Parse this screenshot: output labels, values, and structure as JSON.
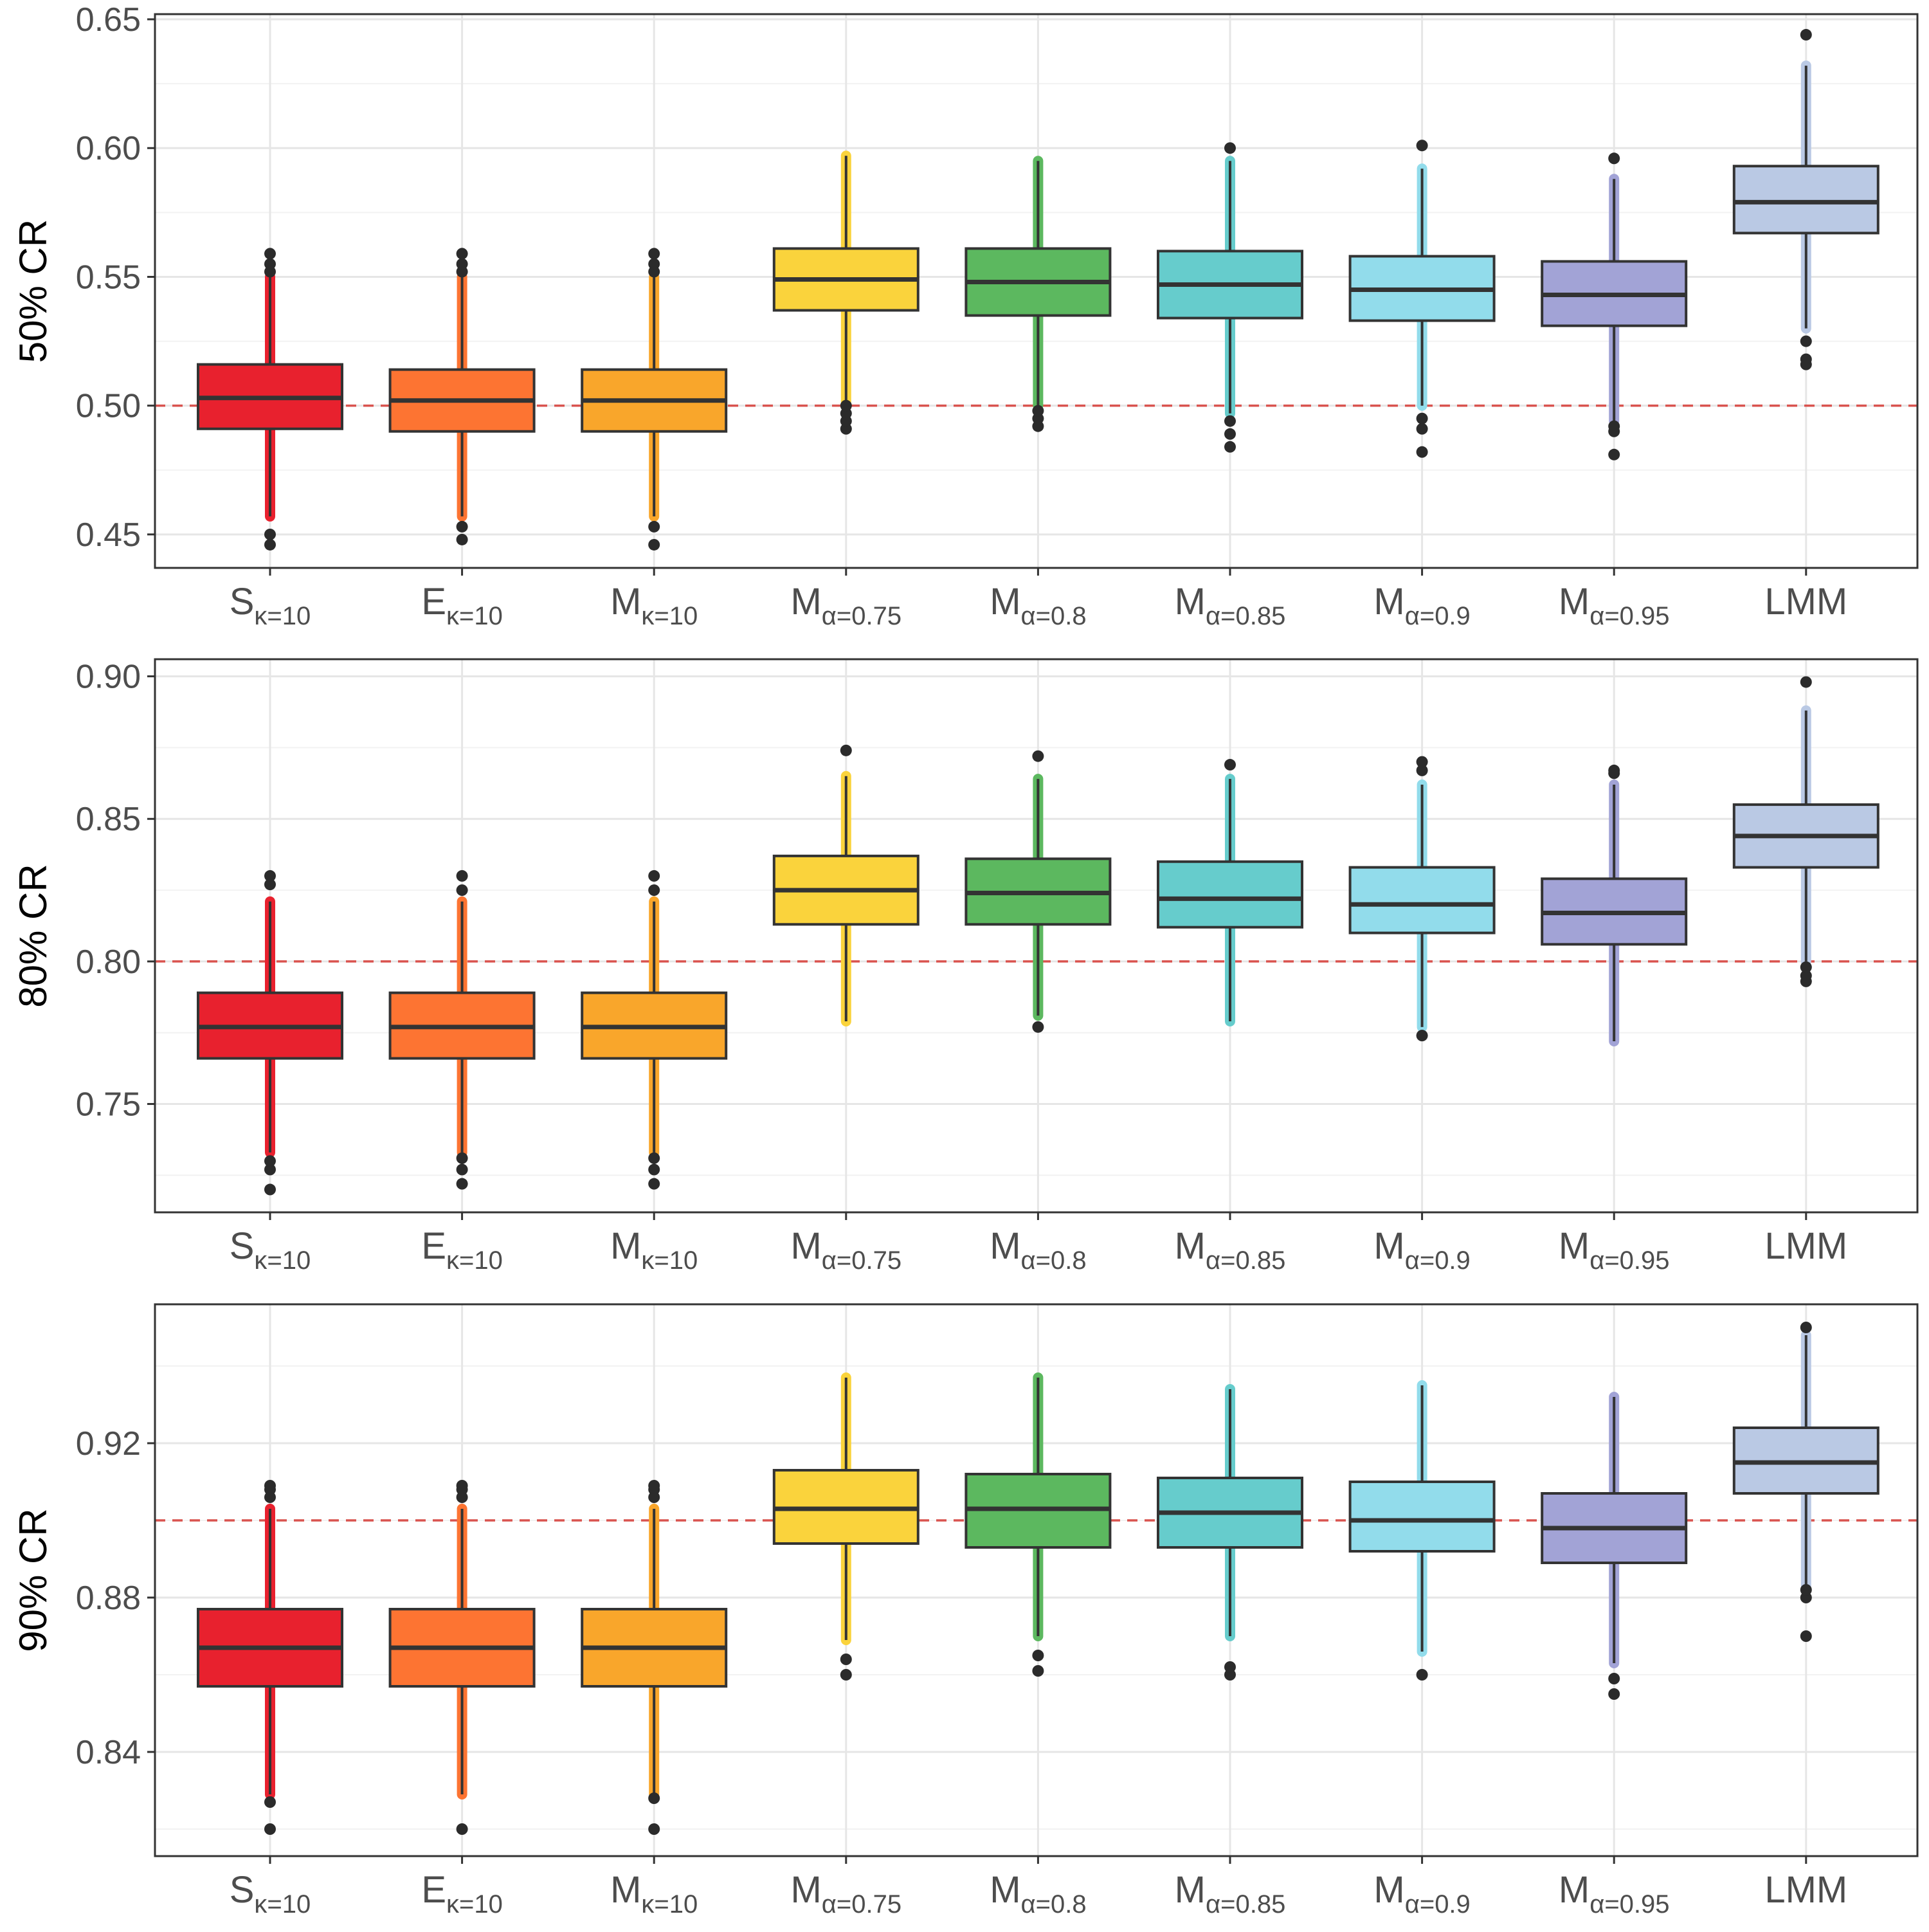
{
  "colors": {
    "reference_line": "#d9534f",
    "grid_major": "#e6e6e6",
    "grid_minor": "#f2f2f2",
    "outline": "#333333",
    "outlier": "#2b2b2b",
    "axis_text": "#4d4d4d",
    "panel_border": "#333333"
  },
  "categories": [
    {
      "base": "S",
      "sub": "κ=10",
      "color": "#e8212e"
    },
    {
      "base": "E",
      "sub": "κ=10",
      "color": "#fd7432"
    },
    {
      "base": "M",
      "sub": "κ=10",
      "color": "#f9a62b"
    },
    {
      "base": "M",
      "sub": "α=0.75",
      "color": "#fad33c"
    },
    {
      "base": "M",
      "sub": "α=0.8",
      "color": "#5cb85f"
    },
    {
      "base": "M",
      "sub": "α=0.85",
      "color": "#66cccc"
    },
    {
      "base": "M",
      "sub": "α=0.9",
      "color": "#92dceb"
    },
    {
      "base": "M",
      "sub": "α=0.95",
      "color": "#a2a3d6"
    },
    {
      "base": "LMM",
      "sub": "",
      "color": "#bac9e4"
    }
  ],
  "chart_data": [
    {
      "type": "boxplot",
      "ylabel": "50% CR",
      "ylim": [
        0.437,
        0.652
      ],
      "yticks": [
        0.45,
        0.5,
        0.55,
        0.6,
        0.65
      ],
      "ytick_labels": [
        "0.45",
        "0.50",
        "0.55",
        "0.60",
        "0.65"
      ],
      "reference_line": 0.5,
      "grid": true,
      "boxes": [
        {
          "q1": 0.491,
          "median": 0.503,
          "q3": 0.516,
          "whisker_low": 0.457,
          "whisker_high": 0.55,
          "outliers": [
            0.446,
            0.45,
            0.552,
            0.555,
            0.559
          ]
        },
        {
          "q1": 0.49,
          "median": 0.502,
          "q3": 0.514,
          "whisker_low": 0.457,
          "whisker_high": 0.55,
          "outliers": [
            0.448,
            0.453,
            0.552,
            0.555,
            0.559
          ]
        },
        {
          "q1": 0.49,
          "median": 0.502,
          "q3": 0.514,
          "whisker_low": 0.457,
          "whisker_high": 0.55,
          "outliers": [
            0.446,
            0.453,
            0.552,
            0.555,
            0.559
          ]
        },
        {
          "q1": 0.537,
          "median": 0.549,
          "q3": 0.561,
          "whisker_low": 0.5,
          "whisker_high": 0.597,
          "outliers": [
            0.491,
            0.494,
            0.497,
            0.5
          ]
        },
        {
          "q1": 0.535,
          "median": 0.548,
          "q3": 0.561,
          "whisker_low": 0.5,
          "whisker_high": 0.595,
          "outliers": [
            0.492,
            0.495,
            0.498
          ]
        },
        {
          "q1": 0.534,
          "median": 0.547,
          "q3": 0.56,
          "whisker_low": 0.497,
          "whisker_high": 0.595,
          "outliers": [
            0.484,
            0.489,
            0.494,
            0.6
          ]
        },
        {
          "q1": 0.533,
          "median": 0.545,
          "q3": 0.558,
          "whisker_low": 0.5,
          "whisker_high": 0.592,
          "outliers": [
            0.482,
            0.491,
            0.495,
            0.601
          ]
        },
        {
          "q1": 0.531,
          "median": 0.543,
          "q3": 0.556,
          "whisker_low": 0.494,
          "whisker_high": 0.588,
          "outliers": [
            0.481,
            0.49,
            0.492,
            0.596
          ]
        },
        {
          "q1": 0.567,
          "median": 0.579,
          "q3": 0.593,
          "whisker_low": 0.53,
          "whisker_high": 0.632,
          "outliers": [
            0.516,
            0.518,
            0.525,
            0.644
          ]
        }
      ]
    },
    {
      "type": "boxplot",
      "ylabel": "80% CR",
      "ylim": [
        0.712,
        0.906
      ],
      "yticks": [
        0.75,
        0.8,
        0.85,
        0.9
      ],
      "ytick_labels": [
        "0.75",
        "0.80",
        "0.85",
        "0.90"
      ],
      "reference_line": 0.8,
      "grid": true,
      "boxes": [
        {
          "q1": 0.766,
          "median": 0.777,
          "q3": 0.789,
          "whisker_low": 0.733,
          "whisker_high": 0.821,
          "outliers": [
            0.72,
            0.727,
            0.73,
            0.827,
            0.83
          ]
        },
        {
          "q1": 0.766,
          "median": 0.777,
          "q3": 0.789,
          "whisker_low": 0.733,
          "whisker_high": 0.821,
          "outliers": [
            0.722,
            0.727,
            0.731,
            0.825,
            0.83
          ]
        },
        {
          "q1": 0.766,
          "median": 0.777,
          "q3": 0.789,
          "whisker_low": 0.733,
          "whisker_high": 0.821,
          "outliers": [
            0.722,
            0.727,
            0.731,
            0.825,
            0.83
          ]
        },
        {
          "q1": 0.813,
          "median": 0.825,
          "q3": 0.837,
          "whisker_low": 0.779,
          "whisker_high": 0.865,
          "outliers": [
            0.874
          ]
        },
        {
          "q1": 0.813,
          "median": 0.824,
          "q3": 0.836,
          "whisker_low": 0.781,
          "whisker_high": 0.864,
          "outliers": [
            0.777,
            0.872
          ]
        },
        {
          "q1": 0.812,
          "median": 0.822,
          "q3": 0.835,
          "whisker_low": 0.779,
          "whisker_high": 0.864,
          "outliers": [
            0.869
          ]
        },
        {
          "q1": 0.81,
          "median": 0.82,
          "q3": 0.833,
          "whisker_low": 0.777,
          "whisker_high": 0.862,
          "outliers": [
            0.774,
            0.867,
            0.87
          ]
        },
        {
          "q1": 0.806,
          "median": 0.817,
          "q3": 0.829,
          "whisker_low": 0.772,
          "whisker_high": 0.862,
          "outliers": [
            0.866,
            0.867
          ]
        },
        {
          "q1": 0.833,
          "median": 0.844,
          "q3": 0.855,
          "whisker_low": 0.8,
          "whisker_high": 0.888,
          "outliers": [
            0.793,
            0.795,
            0.798,
            0.898
          ]
        }
      ]
    },
    {
      "type": "boxplot",
      "ylabel": "90% CR",
      "ylim": [
        0.813,
        0.956
      ],
      "yticks": [
        0.84,
        0.88,
        0.92
      ],
      "ytick_labels": [
        "0.84",
        "0.88",
        "0.92"
      ],
      "reference_line": 0.9,
      "grid": true,
      "boxes": [
        {
          "q1": 0.857,
          "median": 0.867,
          "q3": 0.877,
          "whisker_low": 0.829,
          "whisker_high": 0.903,
          "outliers": [
            0.82,
            0.827,
            0.906,
            0.908,
            0.909
          ]
        },
        {
          "q1": 0.857,
          "median": 0.867,
          "q3": 0.877,
          "whisker_low": 0.829,
          "whisker_high": 0.903,
          "outliers": [
            0.82,
            0.906,
            0.908,
            0.909
          ]
        },
        {
          "q1": 0.857,
          "median": 0.867,
          "q3": 0.877,
          "whisker_low": 0.829,
          "whisker_high": 0.903,
          "outliers": [
            0.82,
            0.828,
            0.906,
            0.908,
            0.909
          ]
        },
        {
          "q1": 0.894,
          "median": 0.903,
          "q3": 0.913,
          "whisker_low": 0.869,
          "whisker_high": 0.937,
          "outliers": [
            0.86,
            0.864
          ]
        },
        {
          "q1": 0.893,
          "median": 0.903,
          "q3": 0.912,
          "whisker_low": 0.87,
          "whisker_high": 0.937,
          "outliers": [
            0.861,
            0.865
          ]
        },
        {
          "q1": 0.893,
          "median": 0.902,
          "q3": 0.911,
          "whisker_low": 0.87,
          "whisker_high": 0.934,
          "outliers": [
            0.86,
            0.862
          ]
        },
        {
          "q1": 0.892,
          "median": 0.9,
          "q3": 0.91,
          "whisker_low": 0.866,
          "whisker_high": 0.935,
          "outliers": [
            0.86
          ]
        },
        {
          "q1": 0.889,
          "median": 0.898,
          "q3": 0.907,
          "whisker_low": 0.863,
          "whisker_high": 0.932,
          "outliers": [
            0.855,
            0.859
          ]
        },
        {
          "q1": 0.907,
          "median": 0.915,
          "q3": 0.924,
          "whisker_low": 0.883,
          "whisker_high": 0.948,
          "outliers": [
            0.87,
            0.88,
            0.882,
            0.95
          ]
        }
      ]
    }
  ]
}
